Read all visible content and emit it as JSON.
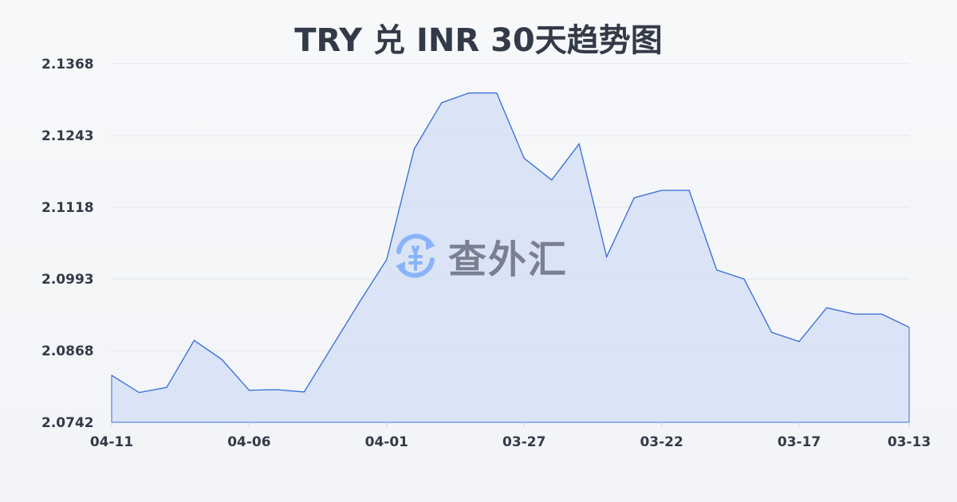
{
  "chart_data": {
    "type": "area",
    "title": "TRY 兑 INR 30天趋势图",
    "xlabel": "",
    "ylabel": "",
    "x": [
      "04-11",
      "04-10",
      "04-09",
      "04-08",
      "04-07",
      "04-06",
      "04-05",
      "04-04",
      "04-03",
      "04-02",
      "04-01",
      "03-31",
      "03-30",
      "03-29",
      "03-28",
      "03-27",
      "03-26",
      "03-25",
      "03-24",
      "03-23",
      "03-22",
      "03-21",
      "03-20",
      "03-19",
      "03-18",
      "03-17",
      "03-16",
      "03-15",
      "03-14",
      "03-13"
    ],
    "values": [
      2.0824,
      2.0794,
      2.0803,
      2.0885,
      2.0852,
      2.0798,
      2.0799,
      2.0795,
      2.0873,
      2.0951,
      2.1026,
      2.1219,
      2.13,
      2.1317,
      2.1317,
      2.1203,
      2.1165,
      2.1228,
      2.1031,
      2.1134,
      2.1147,
      2.1147,
      2.1008,
      2.0992,
      2.0899,
      2.0883,
      2.0942,
      2.0931,
      2.0931,
      2.0908
    ],
    "xticks": [
      "04-11",
      "04-06",
      "04-01",
      "03-27",
      "03-22",
      "03-17",
      "03-13"
    ],
    "yticks": [
      "2.1368",
      "2.1243",
      "2.1118",
      "2.0993",
      "2.0868",
      "2.0742"
    ],
    "ylim": [
      2.0742,
      2.1368
    ],
    "grid": true,
    "line_color": "#3a6fd8",
    "fill_color": "#d5e0f6"
  },
  "watermark": {
    "text": "查外汇",
    "icon": "yen-exchange-icon",
    "icon_color": "#8ab4f8"
  }
}
